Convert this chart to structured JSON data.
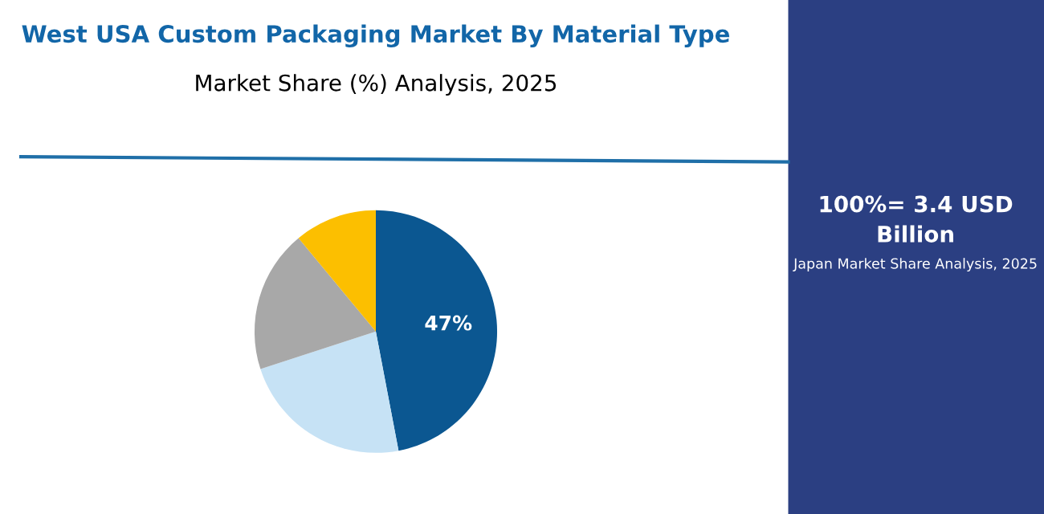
{
  "chart_data": {
    "type": "pie",
    "title": "West USA Custom Packaging Market By Material Type",
    "subtitle": "Market Share (%) Analysis, 2025",
    "categories": [
      null,
      null,
      null,
      null
    ],
    "values": [
      47,
      23,
      19,
      11
    ],
    "colors": [
      "#0b5791",
      "#c6e2f5",
      "#a8a8a8",
      "#fcbf00"
    ],
    "value_labels": [
      "47%",
      null,
      null,
      null
    ],
    "annotations": [
      "100%= 3.4 USD Billion",
      "Japan Market Share Analysis, 2025"
    ]
  }
}
